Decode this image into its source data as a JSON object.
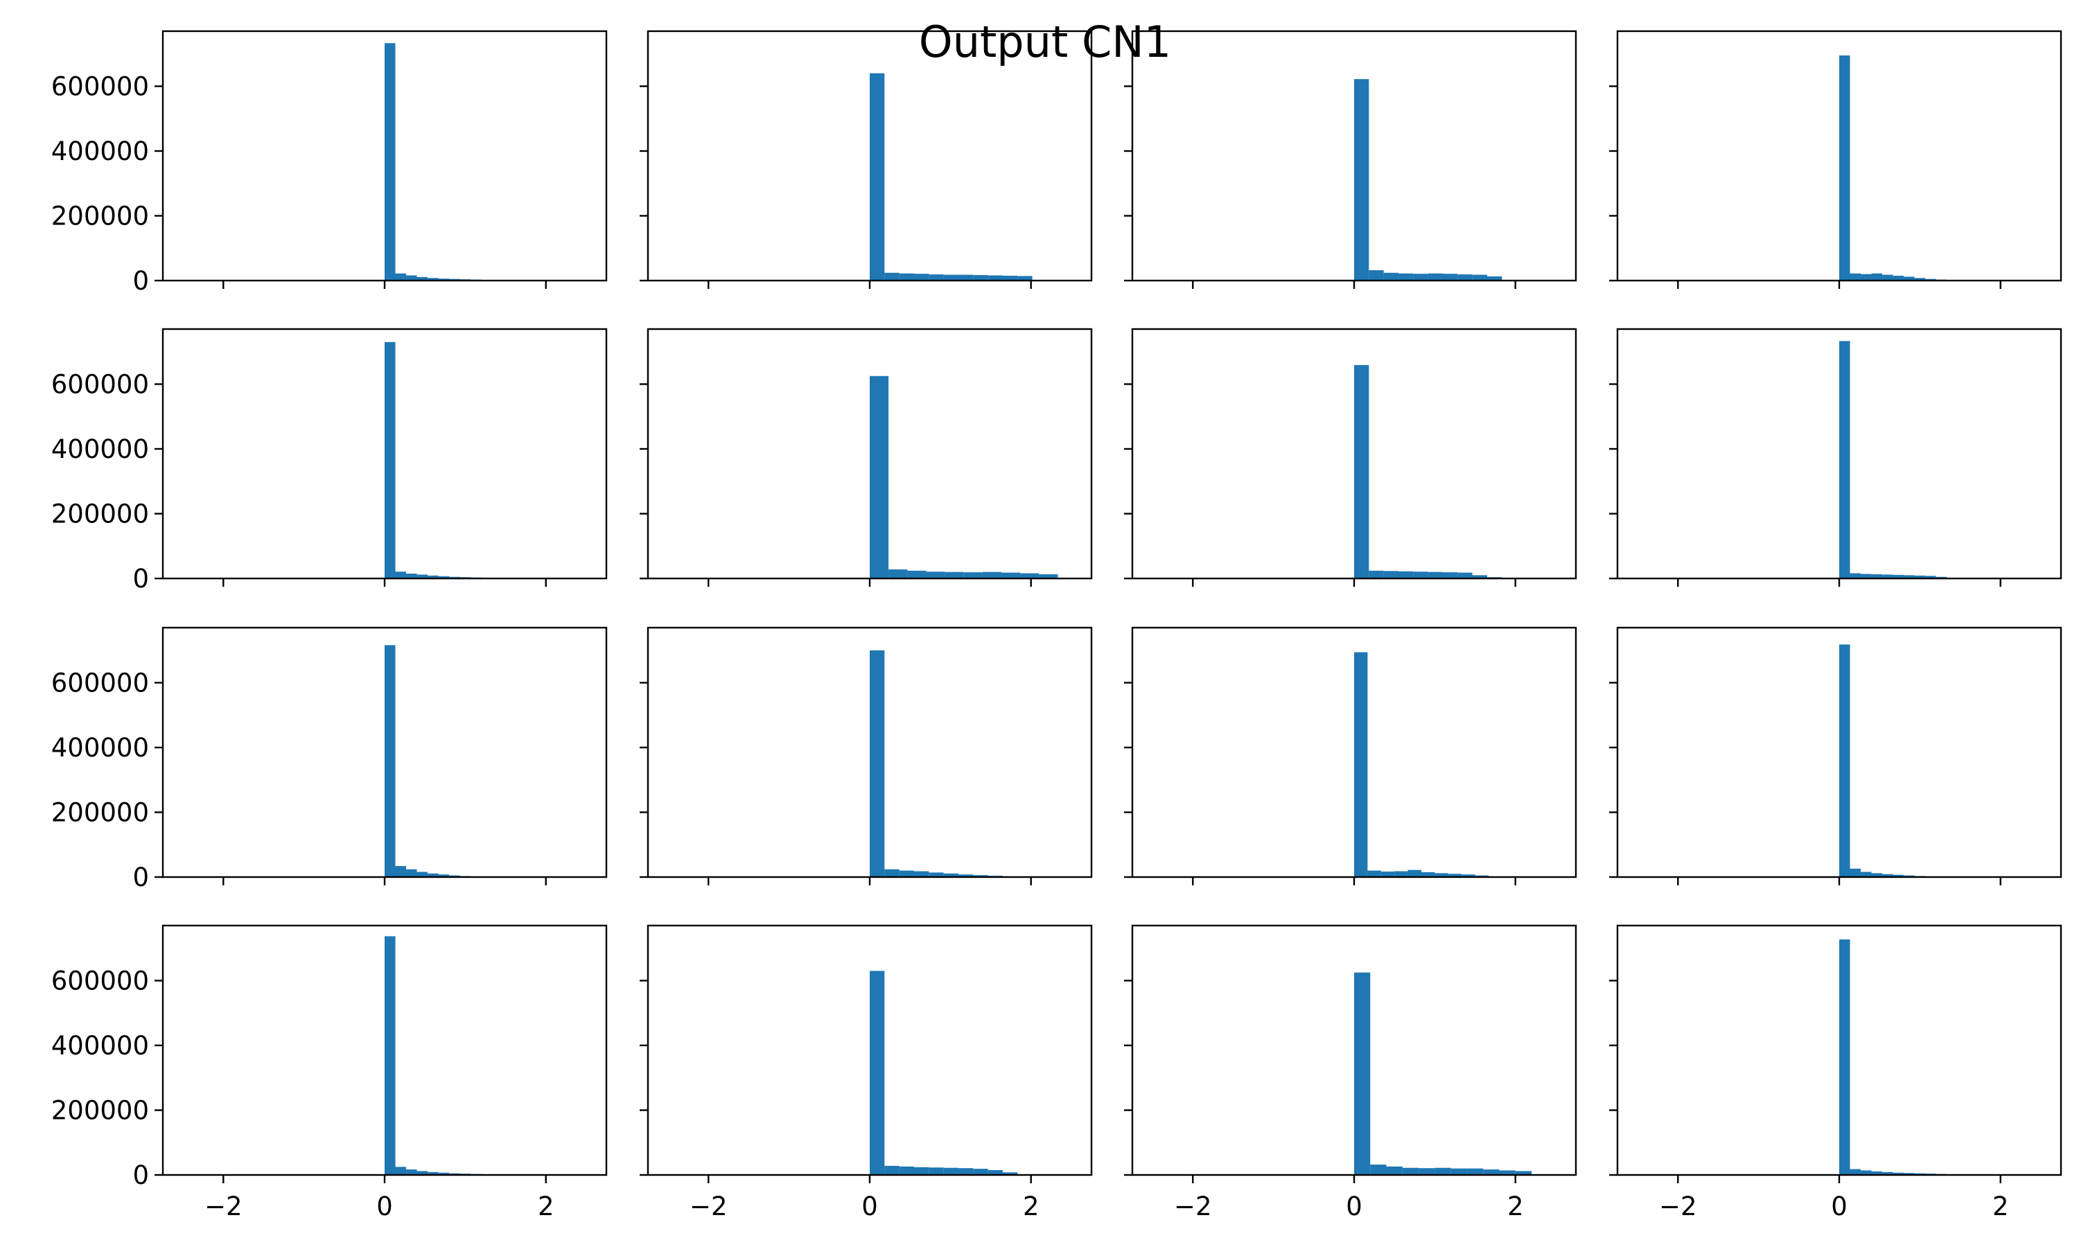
{
  "figure": {
    "title": "Output CN1",
    "bar_color": "#1f77b4"
  },
  "chart_data": {
    "type": "bar",
    "grid": false,
    "layout": "4x4 small multiples, shared axes",
    "xlim": [
      -2.75,
      2.75
    ],
    "ylim": [
      0,
      770000
    ],
    "xticks": [
      -2,
      0,
      2
    ],
    "yticks": [
      0,
      200000,
      400000,
      600000
    ],
    "xtick_labels": [
      "−2",
      "0",
      "2"
    ],
    "ytick_labels": [
      "0",
      "200000",
      "400000",
      "600000"
    ],
    "panels": [
      {
        "bin_width": 0.1333,
        "start": 0,
        "values": [
          733000,
          22000,
          16000,
          11000,
          8000,
          6000,
          5000,
          4000,
          3000,
          2000,
          1500,
          1000
        ]
      },
      {
        "bin_width": 0.1833,
        "start": 0,
        "values": [
          640000,
          24000,
          22000,
          21000,
          19000,
          18000,
          18000,
          17000,
          16000,
          15000,
          14000,
          0
        ]
      },
      {
        "bin_width": 0.1833,
        "start": 0,
        "values": [
          622000,
          32000,
          24000,
          22000,
          21000,
          22000,
          21000,
          19000,
          18000,
          13000,
          0,
          0
        ]
      },
      {
        "bin_width": 0.1333,
        "start": 0,
        "values": [
          695000,
          22000,
          20000,
          22000,
          18000,
          15000,
          12000,
          8000,
          5000,
          3000,
          1000,
          0
        ]
      },
      {
        "bin_width": 0.1333,
        "start": 0,
        "values": [
          730000,
          21000,
          15000,
          12000,
          9000,
          7000,
          5000,
          4000,
          3000,
          2000,
          1500,
          800
        ]
      },
      {
        "bin_width": 0.2333,
        "start": 0,
        "values": [
          625000,
          28000,
          24000,
          21000,
          20000,
          19000,
          20000,
          18000,
          16000,
          13000,
          0,
          0
        ]
      },
      {
        "bin_width": 0.1833,
        "start": 0,
        "values": [
          659000,
          24000,
          23000,
          22000,
          21000,
          20000,
          19000,
          18000,
          10000,
          4000,
          0,
          0
        ]
      },
      {
        "bin_width": 0.1333,
        "start": 0,
        "values": [
          733000,
          16000,
          14000,
          13000,
          12000,
          11000,
          10000,
          9000,
          8000,
          5000,
          1000,
          0
        ]
      },
      {
        "bin_width": 0.1333,
        "start": 0,
        "values": [
          716000,
          34000,
          24000,
          16000,
          11000,
          8000,
          5000,
          3000,
          2000,
          1000,
          500,
          0
        ]
      },
      {
        "bin_width": 0.1833,
        "start": 0,
        "values": [
          700000,
          24000,
          20000,
          18000,
          14000,
          11000,
          8000,
          6000,
          4000,
          2000,
          1000,
          0
        ]
      },
      {
        "bin_width": 0.1667,
        "start": 0,
        "values": [
          694000,
          20000,
          17000,
          18000,
          22000,
          15000,
          12000,
          10000,
          8000,
          5000,
          0,
          0
        ]
      },
      {
        "bin_width": 0.1333,
        "start": 0,
        "values": [
          718000,
          26000,
          16000,
          12000,
          9000,
          7000,
          5000,
          3000,
          2000,
          1000,
          500,
          0
        ]
      },
      {
        "bin_width": 0.1333,
        "start": 0,
        "values": [
          737000,
          25000,
          17000,
          12000,
          9000,
          7000,
          5000,
          4000,
          3000,
          2000,
          1000,
          0
        ]
      },
      {
        "bin_width": 0.1833,
        "start": 0,
        "values": [
          630000,
          28000,
          26000,
          24000,
          23000,
          22000,
          21000,
          19000,
          15000,
          8000,
          0,
          0
        ]
      },
      {
        "bin_width": 0.2,
        "start": 0,
        "values": [
          625000,
          32000,
          26000,
          22000,
          21000,
          22000,
          20000,
          20000,
          17000,
          14000,
          12000,
          0
        ]
      },
      {
        "bin_width": 0.1333,
        "start": 0,
        "values": [
          727000,
          18000,
          14000,
          11000,
          9000,
          7000,
          6000,
          5000,
          4000,
          3000,
          2000,
          1000
        ]
      }
    ]
  }
}
